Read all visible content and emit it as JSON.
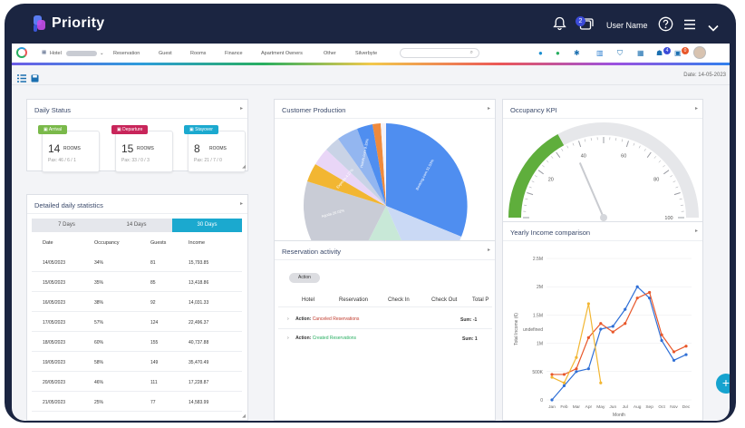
{
  "app": {
    "logo_text": "Priority",
    "user_name": "User Name",
    "notif_count": "2"
  },
  "menu": {
    "items": [
      "Hotel",
      "Reservation",
      "Guest",
      "Rooms",
      "Finance",
      "Apartment Owners",
      "Other",
      "Silverbyte"
    ],
    "toolbar_badge_a": "4",
    "toolbar_badge_b": "0"
  },
  "subbar": {
    "date_label": "Date: 14-05-2023"
  },
  "daily_status": {
    "title": "Daily Status",
    "cards": [
      {
        "label": "Arrival",
        "color": "#7ab94a",
        "count": "14",
        "unit": "ROOMS",
        "pax": "Pax: 46 / 6 / 1"
      },
      {
        "label": "Departure",
        "color": "#c8255a",
        "count": "15",
        "unit": "ROOMS",
        "pax": "Pax: 33 / 0 / 3"
      },
      {
        "label": "Stayover",
        "color": "#1ba9cf",
        "count": "8",
        "unit": "ROOMS",
        "pax": "Pax: 21 / 7 / 0"
      }
    ]
  },
  "detailed": {
    "title": "Detailed daily statistics",
    "tabs": [
      "7 Days",
      "14 Days",
      "30 Days"
    ],
    "columns": [
      "Date",
      "Occupancy",
      "Guests",
      "Income"
    ],
    "rows": [
      [
        "14/05/2023",
        "34%",
        "81",
        "15,793.85"
      ],
      [
        "15/05/2023",
        "35%",
        "85",
        "13,418.86"
      ],
      [
        "16/05/2023",
        "38%",
        "92",
        "14,031.33"
      ],
      [
        "17/05/2023",
        "57%",
        "124",
        "22,496.37"
      ],
      [
        "18/05/2023",
        "60%",
        "155",
        "40,737.88"
      ],
      [
        "19/05/2023",
        "58%",
        "149",
        "35,470.49"
      ],
      [
        "20/05/2023",
        "46%",
        "111",
        "17,228.87"
      ],
      [
        "21/05/2023",
        "25%",
        "77",
        "14,583.99"
      ]
    ]
  },
  "customer_production": {
    "title": "Customer Production",
    "slice_labels": [
      "Booking.com 31.53%",
      "Agoda 20.02%",
      "Hotels.com 9.35%",
      "Expedia 4.27%"
    ]
  },
  "reservation_activity": {
    "title": "Reservation activity",
    "button": "Action",
    "columns": [
      "Hotel",
      "Reservation",
      "Check In",
      "Check Out",
      "Total P"
    ],
    "rows": [
      {
        "prefix": "Action:",
        "name": "Canceled Reservations",
        "color": "#c0392b",
        "sum": "Sum: -1"
      },
      {
        "prefix": "Action:",
        "name": "Created Reservations",
        "color": "#27ae60",
        "sum": "Sum: 1"
      }
    ]
  },
  "occupancy_kpi": {
    "title": "Occupancy KPI",
    "ticks": [
      "20",
      "40",
      "60",
      "80",
      "100"
    ],
    "ticks_low": [
      "0"
    ],
    "value": 34
  },
  "yearly_income": {
    "title": "Yearly Income comparison",
    "undefined_label": "undefined"
  },
  "chart_data": {
    "type": "line",
    "title": "",
    "xlabel": "Month",
    "ylabel": "Total Income (€)",
    "categories": [
      "Jan",
      "Feb",
      "Mar",
      "Apr",
      "May",
      "Jun",
      "Jul",
      "Aug",
      "Sep",
      "Oct",
      "Nov",
      "Dec"
    ],
    "ytick_labels": [
      "0",
      "500K",
      "1M",
      "1.5M",
      "2M",
      "2.5M"
    ],
    "ylim": [
      0,
      2500000
    ],
    "series": [
      {
        "name": "2021",
        "color": "#2f6fd6",
        "values": [
          0,
          250000,
          500000,
          550000,
          1250000,
          1300000,
          1600000,
          2000000,
          1800000,
          1050000,
          700000,
          800000
        ]
      },
      {
        "name": "2022",
        "color": "#e8572a",
        "values": [
          450000,
          450000,
          550000,
          1100000,
          1350000,
          1200000,
          1350000,
          1800000,
          1900000,
          1150000,
          850000,
          950000
        ]
      },
      {
        "name": "2023",
        "color": "#f2b632",
        "values": [
          400000,
          300000,
          750000,
          1700000,
          300000,
          null,
          null,
          null,
          null,
          null,
          null,
          null
        ]
      }
    ]
  }
}
